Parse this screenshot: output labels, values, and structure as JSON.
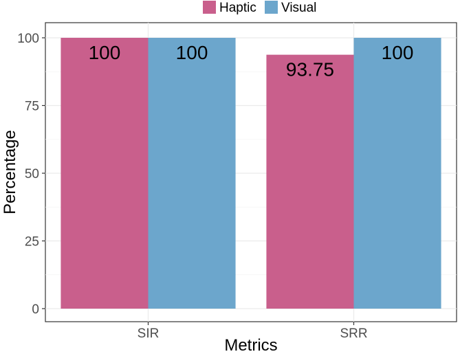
{
  "chart_data": {
    "type": "bar",
    "categories": [
      "SIR",
      "SRR"
    ],
    "series": [
      {
        "name": "Haptic",
        "values": [
          100,
          93.75
        ],
        "color": "#C95F8C"
      },
      {
        "name": "Visual",
        "values": [
          100,
          100
        ],
        "color": "#6CA6CC"
      }
    ],
    "data_labels": [
      [
        "100",
        "93.75"
      ],
      [
        "100",
        "100"
      ]
    ],
    "xlabel": "Metrics",
    "ylabel": "Percentage",
    "ylim": [
      0,
      100
    ],
    "yticks": [
      0,
      25,
      50,
      75,
      100
    ],
    "grid": true,
    "legend_position": "top"
  }
}
